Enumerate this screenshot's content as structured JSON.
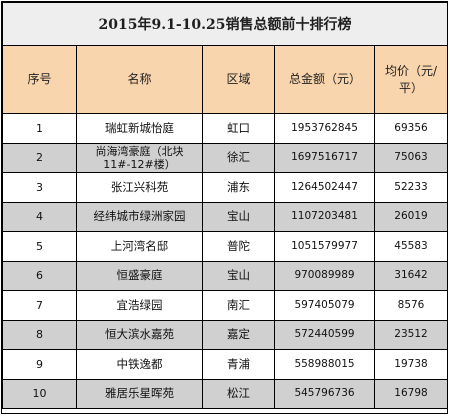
{
  "title": "2015年9.1-10.25销售总额前十排行榜",
  "columns": [
    "序号",
    "名称",
    "区域",
    "总金额（元）",
    "均价（元/平）"
  ],
  "rows": [
    {
      "no": "1",
      "name": "瑞虹新城怡庭",
      "area": "虹口",
      "total": "1953762845",
      "avg": "69356"
    },
    {
      "no": "2",
      "name": "尚海湾豪庭（北块11#-12#楼）",
      "area": "徐汇",
      "total": "1697516717",
      "avg": "75063"
    },
    {
      "no": "3",
      "name": "张江兴科苑",
      "area": "浦东",
      "total": "1264502447",
      "avg": "52233"
    },
    {
      "no": "4",
      "name": "经纬城市绿洲家园",
      "area": "宝山",
      "total": "1107203481",
      "avg": "26019"
    },
    {
      "no": "5",
      "name": "上河湾名邸",
      "area": "普陀",
      "total": "1051579977",
      "avg": "45583"
    },
    {
      "no": "6",
      "name": "恒盛豪庭",
      "area": "宝山",
      "total": "970089989",
      "avg": "31642"
    },
    {
      "no": "7",
      "name": "宜浩绿园",
      "area": "南汇",
      "total": "597405079",
      "avg": "8576"
    },
    {
      "no": "8",
      "name": "恒大滨水嘉苑",
      "area": "嘉定",
      "total": "572440599",
      "avg": "23512"
    },
    {
      "no": "9",
      "name": "中铁逸都",
      "area": "青浦",
      "total": "558988015",
      "avg": "19738"
    },
    {
      "no": "10",
      "name": "雅居乐星晖苑",
      "area": "松江",
      "total": "545796736",
      "avg": "16798"
    }
  ]
}
